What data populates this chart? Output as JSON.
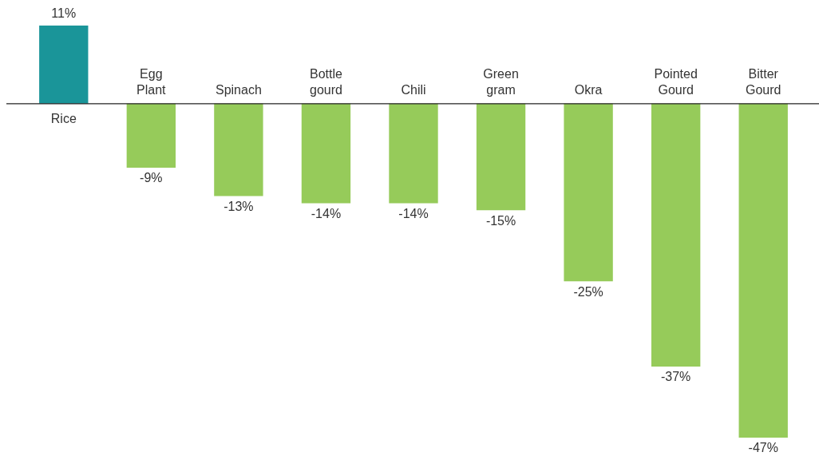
{
  "chart_data": {
    "type": "bar",
    "categories": [
      "Rice",
      "Egg Plant",
      "Spinach",
      "Bottle gourd",
      "Chili",
      "Green gram",
      "Okra",
      "Pointed Gourd",
      "Bitter Gourd"
    ],
    "values": [
      11,
      -9,
      -13,
      -14,
      -14,
      -15,
      -25,
      -37,
      -47
    ],
    "colors": [
      "#1a9599",
      "#96cb5a",
      "#96cb5a",
      "#96cb5a",
      "#96cb5a",
      "#96cb5a",
      "#96cb5a",
      "#96cb5a",
      "#96cb5a"
    ],
    "value_labels": [
      "11%",
      "-9%",
      "-13%",
      "-14%",
      "-14%",
      "-15%",
      "-25%",
      "-37%",
      "-47%"
    ]
  }
}
